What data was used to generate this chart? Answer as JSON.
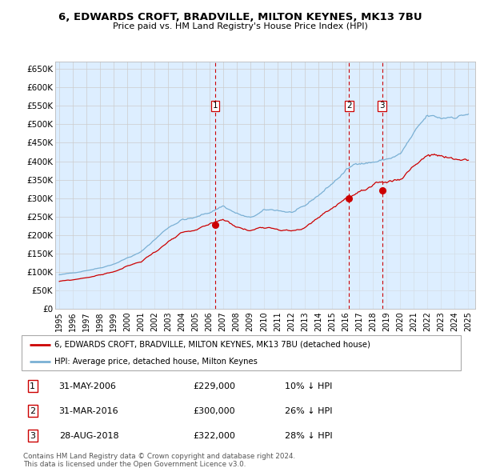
{
  "title": "6, EDWARDS CROFT, BRADVILLE, MILTON KEYNES, MK13 7BU",
  "subtitle": "Price paid vs. HM Land Registry's House Price Index (HPI)",
  "ylim": [
    0,
    670000
  ],
  "yticks": [
    0,
    50000,
    100000,
    150000,
    200000,
    250000,
    300000,
    350000,
    400000,
    450000,
    500000,
    550000,
    600000,
    650000
  ],
  "ytick_labels": [
    "£0",
    "£50K",
    "£100K",
    "£150K",
    "£200K",
    "£250K",
    "£300K",
    "£350K",
    "£400K",
    "£450K",
    "£500K",
    "£550K",
    "£600K",
    "£650K"
  ],
  "house_color": "#cc0000",
  "hpi_color": "#7ab0d4",
  "hpi_fill_color": "#ddeeff",
  "sale_marker_color": "#cc0000",
  "vline_color": "#cc0000",
  "grid_color": "#cccccc",
  "bg_color": "#ddeeff",
  "plot_bg": "#ddeeff",
  "sales": [
    {
      "date_num": 2006.42,
      "price": 229000,
      "label": "1"
    },
    {
      "date_num": 2016.25,
      "price": 300000,
      "label": "2"
    },
    {
      "date_num": 2018.67,
      "price": 322000,
      "label": "3"
    }
  ],
  "sale_labels_table": [
    {
      "num": "1",
      "date": "31-MAY-2006",
      "price": "£229,000",
      "pct": "10% ↓ HPI"
    },
    {
      "num": "2",
      "date": "31-MAR-2016",
      "price": "£300,000",
      "pct": "26% ↓ HPI"
    },
    {
      "num": "3",
      "date": "28-AUG-2018",
      "price": "£322,000",
      "pct": "28% ↓ HPI"
    }
  ],
  "legend_house": "6, EDWARDS CROFT, BRADVILLE, MILTON KEYNES, MK13 7BU (detached house)",
  "legend_hpi": "HPI: Average price, detached house, Milton Keynes",
  "footnote": "Contains HM Land Registry data © Crown copyright and database right 2024.\nThis data is licensed under the Open Government Licence v3.0.",
  "xtick_years": [
    1995,
    1996,
    1997,
    1998,
    1999,
    2000,
    2001,
    2002,
    2003,
    2004,
    2005,
    2006,
    2007,
    2008,
    2009,
    2010,
    2011,
    2012,
    2013,
    2014,
    2015,
    2016,
    2017,
    2018,
    2019,
    2020,
    2021,
    2022,
    2023,
    2024,
    2025
  ]
}
